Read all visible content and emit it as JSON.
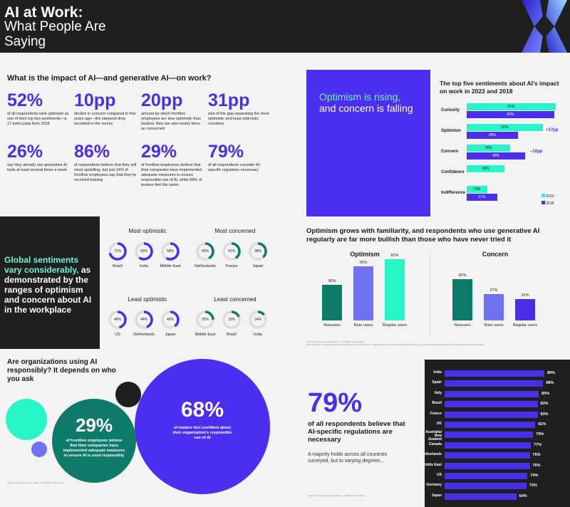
{
  "header": {
    "title_line1": "AI at Work:",
    "title_line2": "What People Are Saying"
  },
  "stats_section": {
    "question": "What is the impact of AI—and generative AI—on work?",
    "stats": [
      {
        "value": "52%",
        "desc": "of all respondents rank optimism as one of their top two sentiments—a 17-point jump from 2018"
      },
      {
        "value": "10pp",
        "desc": "decline in concern compared to five years ago—the steepest drop recorded in the survey"
      },
      {
        "value": "20pp",
        "desc": "amount by which frontline employees are less optimistic than leaders; they are also nearly twice as concerned"
      },
      {
        "value": "31pp",
        "desc": "size of the gap separating the most optimistic and least optimistic countries"
      },
      {
        "value": "26%",
        "desc": "say they already use generative AI tools at least several times a week"
      },
      {
        "value": "86%",
        "desc": "of respondents believe that they will need upskilling, but just 14% of frontline employees say that they've received training"
      },
      {
        "value": "29%",
        "desc": "of frontline employees believe that their companies have implemented adequate measures to ensure responsible use of AI, while 68% of leaders feel the same"
      },
      {
        "value": "79%",
        "desc": "of all respondents consider AI-specific regulation necessary"
      }
    ]
  },
  "optimism_card": {
    "line1": "Optimism is rising,",
    "line2": "and concern is falling"
  },
  "colors": {
    "purple": "#4a2ee8",
    "mint": "#28f5c8",
    "dark": "#1f1f1f",
    "teal": "#0e7a6a",
    "lavender": "#6f72f0"
  },
  "top5": {
    "title": "The top five sentiments about AI's impact on work in 2023 and 2018",
    "legend": [
      "2023",
      "2018"
    ],
    "annotations": {
      "optimism": "+17pp",
      "concern": "–10pp"
    }
  },
  "global_panel": {
    "highlight": "Global sentiments vary considerably,",
    "rest": " as demonstrated by the ranges of optimism and concern about AI in the workplace"
  },
  "ring_groups": [
    {
      "title": "Most optimistic",
      "items": [
        {
          "label": "Brazil",
          "value": "71%"
        },
        {
          "label": "India",
          "value": "60%"
        },
        {
          "label": "Middle East",
          "value": "58%"
        }
      ]
    },
    {
      "title": "Most concerned",
      "items": [
        {
          "label": "Netherlands",
          "value": "42%"
        },
        {
          "label": "France",
          "value": "41%"
        },
        {
          "label": "Japan",
          "value": "38%"
        }
      ]
    },
    {
      "title": "Least optimistic",
      "items": [
        {
          "label": "US",
          "value": "46%"
        },
        {
          "label": "Netherlands",
          "value": "44%"
        },
        {
          "label": "Japan",
          "value": "40%"
        }
      ]
    },
    {
      "title": "Least concerned",
      "items": [
        {
          "label": "Middle East",
          "value": "25%"
        },
        {
          "label": "Brazil",
          "value": "19%"
        },
        {
          "label": "India",
          "value": "14%"
        }
      ]
    }
  ],
  "familiarity": {
    "title": "Optimism grows with familiarity, and respondents who use generative AI regularly are far more bullish than those who have never tried it",
    "source": "Source: AI at Work survey (2023), n = 12,898 in 18 countries.",
    "note": "Note: Proportion of respondents selecting the feeling in their top two. \"Regular users\" use generative AI at least weekly; \"rare users\" are respondents who use generative AI at most monthly."
  },
  "responsibly": {
    "title": "Are organizations using AI responsibly? It depends on who you ask",
    "frontline_value": "29%",
    "frontline_desc": "of frontline employees believe that their companies have implemented adequate measures to ensure AI is used responsibly",
    "leaders_value": "68%",
    "leaders_desc": "of leaders feel confident about their organization's responsible use of AI",
    "source": "Source: AI at Work survey (2023), n = 12,898 in 18 countries."
  },
  "regulation": {
    "value": "79%",
    "desc": "of all respondents believe that AI-specific regulations are necessary",
    "sub": "A majority holds across all countries surveyed, but to varying degrees...",
    "source": "Source: AI at Work survey (2023), n = 12,898 in 18 countries."
  },
  "chart_data": [
    {
      "type": "bar",
      "title": "The top five sentiments about AI's impact on work in 2023 and 2018",
      "categories": [
        "Curiosity",
        "Optimism",
        "Concern",
        "Confidence",
        "Indifference"
      ],
      "series": [
        {
          "name": "2023",
          "values": [
            61,
            52,
            30,
            26,
            14
          ]
        },
        {
          "name": "2018",
          "values": [
            60,
            35,
            40,
            null,
            21
          ]
        }
      ],
      "orientation": "horizontal"
    },
    {
      "type": "bar",
      "title": "Optimism",
      "categories": [
        "Nonusers",
        "Rare users",
        "Regular users"
      ],
      "values": [
        36,
        55,
        62
      ]
    },
    {
      "type": "bar",
      "title": "Concern",
      "categories": [
        "Nonusers",
        "Rare users",
        "Regular users"
      ],
      "values": [
        42,
        27,
        22
      ]
    },
    {
      "type": "bar",
      "orientation": "horizontal",
      "categories": [
        "India",
        "Spain",
        "Italy",
        "Brazil",
        "France",
        "UK",
        "Australia/ New Zealand",
        "Canada",
        "Netherlands",
        "Middle East",
        "US",
        "Germany",
        "Japan"
      ],
      "values": [
        89,
        88,
        84,
        83,
        83,
        81,
        79,
        77,
        76,
        76,
        74,
        73,
        64
      ]
    }
  ]
}
